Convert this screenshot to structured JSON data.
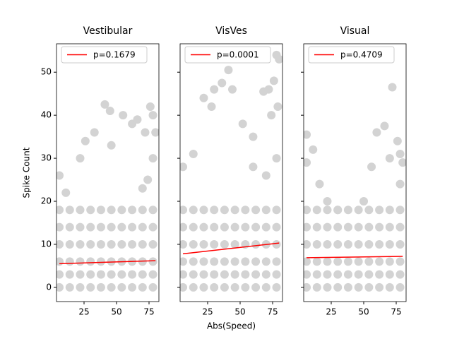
{
  "chart_data": [
    {
      "type": "scatter",
      "title": "Vestibular",
      "ylabel": "Spike Count",
      "color": "#d3d3d3",
      "legend": "upper left",
      "x": [
        6,
        6,
        6,
        6,
        6,
        6,
        14,
        14,
        14,
        14,
        14,
        14,
        22,
        22,
        22,
        22,
        22,
        22,
        30,
        30,
        30,
        30,
        30,
        30,
        38,
        38,
        38,
        38,
        38,
        38,
        46,
        46,
        46,
        46,
        46,
        46,
        54,
        54,
        54,
        54,
        54,
        54,
        62,
        62,
        62,
        62,
        62,
        62,
        70,
        70,
        70,
        70,
        70,
        70,
        78,
        78,
        78,
        78,
        78,
        78,
        6,
        11,
        22,
        26,
        33,
        41,
        45,
        46,
        55,
        62,
        66,
        72,
        76,
        78,
        80,
        78,
        74,
        70
      ],
      "y": [
        0,
        3,
        6,
        10,
        14,
        18,
        0,
        3,
        6,
        10,
        14,
        18,
        0,
        3,
        6,
        10,
        14,
        18,
        0,
        3,
        6,
        10,
        14,
        18,
        0,
        3,
        6,
        10,
        14,
        18,
        0,
        3,
        6,
        10,
        14,
        18,
        0,
        3,
        6,
        10,
        14,
        18,
        0,
        3,
        6,
        10,
        14,
        18,
        0,
        3,
        6,
        10,
        14,
        18,
        0,
        3,
        6,
        10,
        14,
        18,
        26,
        22,
        30,
        34,
        36,
        42.5,
        41,
        33,
        40,
        38,
        39,
        36,
        42,
        40,
        36,
        30,
        25,
        23
      ],
      "fit": {
        "name": "p=0.1679",
        "color": "#ff0000",
        "x": [
          6,
          80
        ],
        "y": [
          5.5,
          6.2
        ]
      },
      "xlim": [
        3.8,
        82.6
      ],
      "ylim": [
        -3.3,
        56.6
      ],
      "xticks": [
        25,
        50,
        75
      ],
      "yticks": [
        0,
        10,
        20,
        30,
        40,
        50
      ]
    },
    {
      "type": "scatter",
      "title": "VisVes",
      "xlabel": "Abs(Speed)",
      "color": "#d3d3d3",
      "legend": "upper left",
      "x": [
        6,
        6,
        6,
        6,
        6,
        6,
        14,
        14,
        14,
        14,
        14,
        14,
        22,
        22,
        22,
        22,
        22,
        22,
        30,
        30,
        30,
        30,
        30,
        30,
        38,
        38,
        38,
        38,
        38,
        38,
        46,
        46,
        46,
        46,
        46,
        46,
        54,
        54,
        54,
        54,
        54,
        54,
        62,
        62,
        62,
        62,
        62,
        62,
        70,
        70,
        70,
        70,
        70,
        70,
        78,
        78,
        78,
        78,
        78,
        78,
        6,
        14,
        22,
        28,
        30,
        36,
        41,
        44,
        52,
        60,
        68,
        72,
        76,
        78,
        80,
        79,
        74,
        78,
        70,
        60
      ],
      "y": [
        0,
        3,
        6,
        10,
        14,
        18,
        0,
        3,
        6,
        10,
        14,
        18,
        0,
        3,
        6,
        10,
        14,
        18,
        0,
        3,
        6,
        10,
        14,
        18,
        0,
        3,
        6,
        10,
        14,
        18,
        0,
        3,
        6,
        10,
        14,
        18,
        0,
        3,
        6,
        10,
        14,
        18,
        0,
        3,
        6,
        10,
        14,
        18,
        0,
        3,
        6,
        10,
        14,
        18,
        0,
        3,
        6,
        10,
        14,
        18,
        28,
        31,
        44,
        42,
        46,
        47.5,
        50.5,
        46,
        38,
        35,
        45.5,
        46,
        48,
        54,
        53,
        42,
        40,
        30,
        26,
        28
      ],
      "fit": {
        "name": "p=0.0001",
        "color": "#ff0000",
        "x": [
          6,
          80
        ],
        "y": [
          7.8,
          10.3
        ]
      },
      "xlim": [
        3.8,
        82.6
      ],
      "ylim": [
        -3.3,
        56.6
      ],
      "xticks": [
        25,
        50,
        75
      ]
    },
    {
      "type": "scatter",
      "title": "Visual",
      "color": "#d3d3d3",
      "legend": "upper left",
      "x": [
        6,
        6,
        6,
        6,
        6,
        6,
        14,
        14,
        14,
        14,
        14,
        14,
        22,
        22,
        22,
        22,
        22,
        22,
        30,
        30,
        30,
        30,
        30,
        30,
        38,
        38,
        38,
        38,
        38,
        38,
        46,
        46,
        46,
        46,
        46,
        46,
        54,
        54,
        54,
        54,
        54,
        54,
        62,
        62,
        62,
        62,
        62,
        62,
        70,
        70,
        70,
        70,
        70,
        70,
        78,
        78,
        78,
        78,
        78,
        78,
        6,
        6,
        11,
        16,
        22,
        30,
        50,
        56,
        60,
        66,
        72,
        76,
        78,
        80,
        70,
        78
      ],
      "y": [
        0,
        3,
        6,
        10,
        14,
        18,
        0,
        3,
        6,
        10,
        14,
        18,
        0,
        3,
        6,
        10,
        14,
        18,
        0,
        3,
        6,
        10,
        14,
        18,
        0,
        3,
        6,
        10,
        14,
        18,
        0,
        3,
        6,
        10,
        14,
        18,
        0,
        3,
        6,
        10,
        14,
        18,
        0,
        3,
        6,
        10,
        14,
        18,
        0,
        3,
        6,
        10,
        14,
        18,
        0,
        3,
        6,
        10,
        14,
        18,
        35.5,
        29,
        32,
        24,
        20,
        18,
        20,
        28,
        36,
        37.5,
        46.5,
        34,
        31,
        29,
        30,
        24
      ],
      "fit": {
        "name": "p=0.4709",
        "color": "#ff0000",
        "x": [
          6,
          80
        ],
        "y": [
          6.9,
          7.2
        ]
      },
      "xlim": [
        3.8,
        82.6
      ],
      "ylim": [
        -3.3,
        56.6
      ],
      "xticks": [
        25,
        50,
        75
      ]
    }
  ]
}
